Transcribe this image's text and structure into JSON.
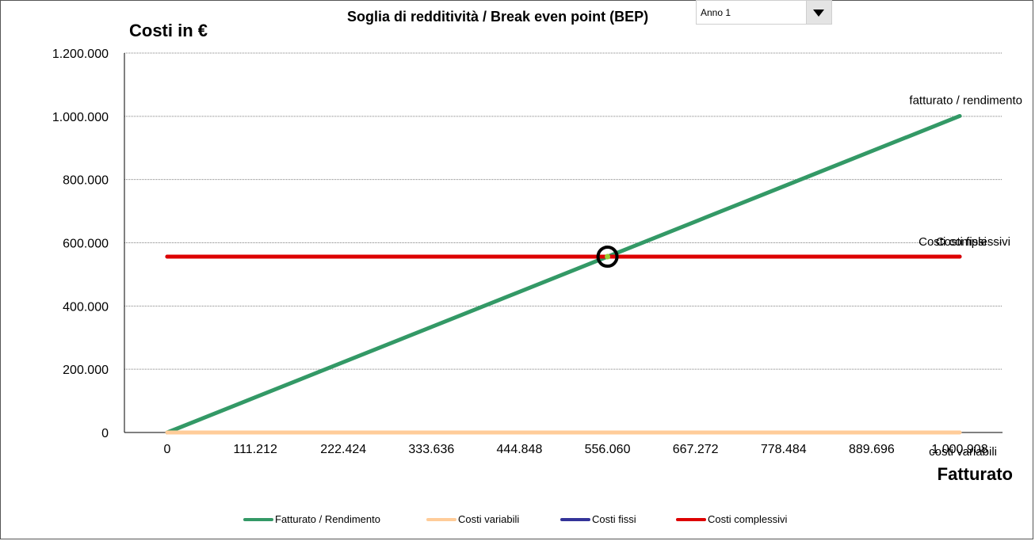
{
  "chart_data": {
    "type": "line",
    "title": "Soglia di redditività / Break even point (BEP)",
    "ylabel": "Costi in €",
    "xlabel": "Fatturato",
    "ylim": [
      0,
      1200000
    ],
    "yticks": [
      "0",
      "200.000",
      "400.000",
      "600.000",
      "800.000",
      "1.000.000",
      "1.200.000"
    ],
    "x_tick_labels": [
      "0",
      "111.212",
      "222.424",
      "333.636",
      "444.848",
      "556.060",
      "667.272",
      "778.484",
      "889.696",
      "1.000.908"
    ],
    "x": [
      0,
      111212,
      222424,
      333636,
      444848,
      556060,
      667272,
      778484,
      889696,
      1000908
    ],
    "grid": true,
    "legend_position": "bottom",
    "series": [
      {
        "name": "Fatturato / Rendimento",
        "color": "#339966",
        "values": [
          0,
          111212,
          222424,
          333636,
          444848,
          556060,
          667272,
          778484,
          889696,
          1000908
        ],
        "end_label": "fatturato / rendimento"
      },
      {
        "name": "Costi variabili",
        "color": "#FFCC99",
        "values": [
          0,
          0,
          0,
          0,
          0,
          0,
          0,
          0,
          0,
          0
        ],
        "end_label": "costi variabili"
      },
      {
        "name": "Costi fissi",
        "color": "#333399",
        "values": [
          556060,
          556060,
          556060,
          556060,
          556060,
          556060,
          556060,
          556060,
          556060,
          556060
        ],
        "end_label": "Costi fissi"
      },
      {
        "name": "Costi complessivi",
        "color": "#DD0000",
        "values": [
          556060,
          556060,
          556060,
          556060,
          556060,
          556060,
          556060,
          556060,
          556060,
          556060
        ],
        "end_label": "Costi complessivi"
      }
    ],
    "break_even": {
      "x": 556060,
      "y": 556060
    }
  },
  "selector": {
    "value": "Anno 1"
  }
}
